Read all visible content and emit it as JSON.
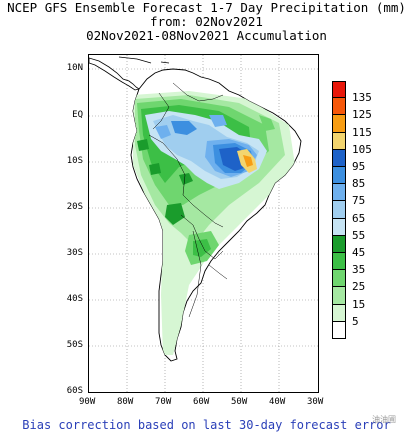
{
  "header": {
    "line1": "NCEP GFS Ensemble Forecast 1-7 Day Precipitation (mm)",
    "line2": "from: 02Nov2021",
    "line3": "02Nov2021-08Nov2021 Accumulation"
  },
  "axes": {
    "lat_labels": [
      "10N",
      "EQ",
      "10S",
      "20S",
      "30S",
      "40S",
      "50S",
      "60S"
    ],
    "lon_labels": [
      "90W",
      "80W",
      "70W",
      "60W",
      "50W",
      "40W",
      "30W"
    ]
  },
  "legend": {
    "levels": [
      {
        "value": "135",
        "color": "#e8170a"
      },
      {
        "value": "125",
        "color": "#f6580a"
      },
      {
        "value": "115",
        "color": "#f79d14"
      },
      {
        "value": "105",
        "color": "#f3d56f"
      },
      {
        "value": "95",
        "color": "#1e62c8"
      },
      {
        "value": "85",
        "color": "#3c8fe0"
      },
      {
        "value": "75",
        "color": "#6eb0ee"
      },
      {
        "value": "65",
        "color": "#a0ceef"
      },
      {
        "value": "55",
        "color": "#c6e4f4"
      },
      {
        "value": "45",
        "color": "#1a9c2c"
      },
      {
        "value": "35",
        "color": "#3cbf46"
      },
      {
        "value": "25",
        "color": "#6fd66f"
      },
      {
        "value": "15",
        "color": "#a5e8a2"
      },
      {
        "value": "5",
        "color": "#d6f6d3"
      },
      {
        "value": "",
        "color": "#ffffff"
      }
    ]
  },
  "footer": {
    "text": "Bias correction based on last 30-day forecast error"
  },
  "watermark": {
    "text": "油油圃"
  }
}
